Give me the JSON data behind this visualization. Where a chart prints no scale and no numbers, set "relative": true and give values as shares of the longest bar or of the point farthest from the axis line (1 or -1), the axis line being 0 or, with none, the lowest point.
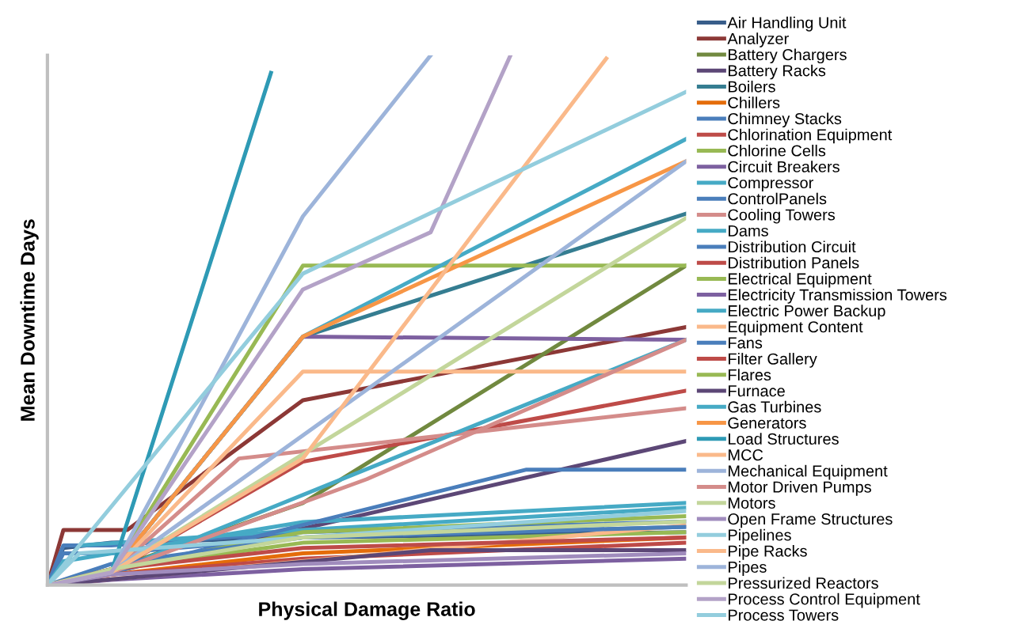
{
  "chart_data": {
    "type": "line",
    "relative": true,
    "xlabel": "Physical Damage Ratio",
    "ylabel": "Mean Downtime Days",
    "legend": "right",
    "line_style": "solid",
    "categories": [
      null,
      null,
      null,
      null,
      null,
      null,
      null,
      null,
      null,
      null,
      null,
      null,
      null,
      null,
      null,
      null,
      null,
      null,
      null,
      null,
      null,
      null,
      null,
      null,
      null,
      null,
      null,
      null,
      null,
      null,
      null,
      null,
      null,
      null,
      null,
      null,
      null,
      null,
      null,
      null,
      null
    ],
    "series": [
      {
        "name": "Air Handling Unit",
        "color": "#385d8a",
        "values": [
          0,
          0.07,
          null,
          null,
          0.08,
          null,
          null,
          null,
          null,
          null,
          null,
          null,
          null,
          null,
          null,
          null,
          0.09,
          null,
          null,
          null,
          null,
          null,
          null,
          null,
          null,
          null,
          null,
          null,
          null,
          null,
          null,
          null,
          null,
          null,
          null,
          null,
          null,
          null,
          null,
          null,
          0.1
        ]
      },
      {
        "name": "Analyzer",
        "color": "#8c3836",
        "values": [
          0,
          0.104,
          null,
          null,
          null,
          0.104,
          null,
          null,
          null,
          null,
          null,
          null,
          null,
          null,
          null,
          null,
          0.349,
          null,
          null,
          null,
          null,
          null,
          null,
          null,
          null,
          null,
          null,
          null,
          null,
          null,
          null,
          null,
          null,
          null,
          null,
          null,
          null,
          null,
          null,
          null,
          0.487
        ]
      },
      {
        "name": "Battery Chargers",
        "color": "#71893f",
        "values": [
          0,
          null,
          null,
          null,
          0.03,
          null,
          null,
          null,
          null,
          null,
          null,
          null,
          null,
          null,
          null,
          null,
          0.155,
          null,
          null,
          null,
          null,
          null,
          null,
          null,
          null,
          null,
          null,
          null,
          null,
          null,
          null,
          null,
          null,
          null,
          null,
          null,
          null,
          null,
          null,
          null,
          0.603
        ]
      },
      {
        "name": "Battery Racks",
        "color": "#5c4776",
        "values": [
          0,
          null,
          null,
          null,
          0.024,
          null,
          null,
          null,
          null,
          null,
          null,
          null,
          null,
          null,
          null,
          null,
          null,
          null,
          null,
          null,
          null,
          null,
          null,
          null,
          null,
          null,
          null,
          null,
          null,
          null,
          null,
          null,
          null,
          null,
          null,
          null,
          null,
          null,
          null,
          null,
          0.272
        ]
      },
      {
        "name": "Boilers",
        "color": "#357d91",
        "values": [
          0,
          null,
          null,
          null,
          0.024,
          null,
          null,
          null,
          null,
          null,
          null,
          null,
          null,
          null,
          null,
          null,
          0.469,
          null,
          null,
          null,
          null,
          null,
          null,
          null,
          null,
          null,
          null,
          null,
          null,
          null,
          null,
          null,
          null,
          null,
          null,
          null,
          null,
          null,
          null,
          null,
          0.701
        ]
      },
      {
        "name": "Chillers",
        "color": "#e46c0a",
        "values": [
          0,
          null,
          null,
          null,
          0.02,
          null,
          null,
          null,
          null,
          null,
          null,
          null,
          null,
          null,
          null,
          null,
          0.06,
          null,
          null,
          null,
          null,
          null,
          null,
          null,
          null,
          null,
          null,
          null,
          null,
          null,
          null,
          null,
          null,
          null,
          null,
          null,
          null,
          null,
          null,
          null,
          0.09
        ]
      },
      {
        "name": "Chimney Stacks",
        "color": "#4a7ebb",
        "values": [
          0,
          0.075,
          null,
          null,
          0.075,
          null,
          null,
          null,
          null,
          null,
          null,
          null,
          null,
          null,
          null,
          null,
          0.1,
          null,
          null,
          null,
          null,
          null,
          null,
          null,
          null,
          null,
          null,
          null,
          null,
          null,
          null,
          null,
          null,
          null,
          null,
          null,
          null,
          null,
          null,
          null,
          0.12
        ]
      },
      {
        "name": "Chlorination Equipment",
        "color": "#be4b48",
        "values": [
          0,
          null,
          null,
          null,
          0.024,
          null,
          null,
          null,
          null,
          null,
          null,
          null,
          null,
          null,
          null,
          null,
          0.233,
          null,
          null,
          null,
          null,
          null,
          null,
          null,
          null,
          null,
          null,
          null,
          null,
          null,
          null,
          null,
          null,
          null,
          null,
          null,
          null,
          null,
          null,
          null,
          0.367
        ]
      },
      {
        "name": "Chlorine Cells",
        "color": "#98b954",
        "values": [
          0,
          null,
          null,
          null,
          0.03,
          null,
          null,
          null,
          null,
          null,
          null,
          null,
          null,
          null,
          null,
          null,
          0.08,
          null,
          null,
          null,
          null,
          null,
          null,
          null,
          null,
          null,
          null,
          null,
          null,
          null,
          null,
          null,
          null,
          null,
          null,
          null,
          null,
          null,
          null,
          null,
          0.1
        ]
      },
      {
        "name": "Circuit Breakers",
        "color": "#7d60a0",
        "values": [
          0,
          null,
          null,
          null,
          0.024,
          null,
          null,
          null,
          null,
          null,
          null,
          null,
          null,
          null,
          null,
          null,
          0.469,
          null,
          null,
          null,
          null,
          null,
          null,
          null,
          null,
          null,
          null,
          null,
          null,
          null,
          null,
          null,
          null,
          null,
          null,
          null,
          null,
          null,
          null,
          null,
          0.463
        ]
      },
      {
        "name": "Compressor",
        "color": "#46aac5",
        "values": [
          0,
          null,
          0.075,
          null,
          null,
          null,
          null,
          null,
          null,
          null,
          null,
          null,
          null,
          null,
          null,
          null,
          0.104,
          null,
          null,
          null,
          null,
          null,
          null,
          null,
          null,
          null,
          null,
          null,
          null,
          null,
          null,
          null,
          null,
          null,
          null,
          null,
          null,
          null,
          null,
          null,
          0.146
        ]
      },
      {
        "name": "ControlPanels",
        "color": "#4a7ebb",
        "values": [
          0,
          0.06,
          null,
          null,
          0.06,
          null,
          null,
          null,
          null,
          null,
          null,
          null,
          null,
          null,
          null,
          null,
          0.09,
          null,
          null,
          null,
          null,
          null,
          null,
          null,
          null,
          null,
          null,
          null,
          null,
          null,
          null,
          null,
          null,
          null,
          null,
          null,
          null,
          null,
          null,
          null,
          0.11
        ]
      },
      {
        "name": "Cooling Towers",
        "color": "#d48c8a",
        "values": [
          0,
          null,
          null,
          null,
          0.024,
          null,
          null,
          null,
          null,
          null,
          null,
          null,
          0.239,
          null,
          null,
          null,
          null,
          null,
          null,
          null,
          null,
          null,
          null,
          null,
          null,
          null,
          null,
          null,
          null,
          null,
          null,
          null,
          null,
          null,
          null,
          null,
          null,
          null,
          null,
          null,
          0.334
        ]
      },
      {
        "name": "Dams",
        "color": "#46aac5",
        "values": [
          0,
          0.045,
          null,
          null,
          null,
          null,
          null,
          null,
          null,
          null,
          null,
          null,
          null,
          null,
          null,
          null,
          0.119,
          null,
          null,
          null,
          null,
          null,
          null,
          null,
          null,
          null,
          null,
          null,
          null,
          null,
          null,
          null,
          null,
          null,
          null,
          null,
          null,
          null,
          null,
          null,
          0.155
        ]
      },
      {
        "name": "Distribution Circuit",
        "color": "#4a7ebb",
        "values": [
          0,
          null,
          null,
          null,
          0.024,
          null,
          null,
          null,
          null,
          null,
          null,
          null,
          null,
          null,
          null,
          null,
          null,
          null,
          null,
          null,
          null,
          null,
          null,
          null,
          null,
          null,
          null,
          null,
          null,
          null,
          0.218,
          null,
          null,
          null,
          null,
          null,
          null,
          null,
          null,
          null,
          0.218
        ]
      },
      {
        "name": "Distribution Panels",
        "color": "#be4b48",
        "values": [
          0,
          null,
          null,
          null,
          0.02,
          null,
          null,
          null,
          null,
          null,
          null,
          null,
          null,
          null,
          null,
          null,
          0.05,
          null,
          null,
          null,
          null,
          null,
          null,
          null,
          null,
          null,
          null,
          null,
          null,
          null,
          null,
          null,
          null,
          null,
          null,
          null,
          null,
          null,
          null,
          null,
          0.08
        ]
      },
      {
        "name": "Electrical Equipment",
        "color": "#98b954",
        "values": [
          0,
          null,
          null,
          null,
          0.03,
          null,
          null,
          null,
          null,
          null,
          null,
          null,
          null,
          null,
          null,
          null,
          0.1,
          null,
          null,
          null,
          null,
          null,
          null,
          null,
          null,
          null,
          null,
          null,
          null,
          null,
          null,
          null,
          null,
          null,
          null,
          null,
          null,
          null,
          null,
          null,
          0.13
        ]
      },
      {
        "name": "Electricity Transmission Towers",
        "color": "#7d60a0",
        "values": [
          0,
          null,
          null,
          null,
          0.01,
          null,
          null,
          null,
          null,
          null,
          null,
          null,
          null,
          null,
          null,
          null,
          0.03,
          null,
          null,
          null,
          null,
          null,
          null,
          null,
          null,
          null,
          null,
          null,
          null,
          null,
          null,
          null,
          null,
          null,
          null,
          null,
          null,
          null,
          null,
          null,
          0.05
        ]
      },
      {
        "name": "Electric Power Backup",
        "color": "#46aac5",
        "values": [
          0,
          null,
          null,
          null,
          0.024,
          null,
          null,
          null,
          null,
          null,
          null,
          null,
          null,
          null,
          null,
          null,
          null,
          null,
          null,
          null,
          null,
          null,
          null,
          null,
          null,
          null,
          null,
          null,
          null,
          null,
          null,
          null,
          null,
          null,
          null,
          null,
          null,
          null,
          null,
          null,
          0.463
        ]
      },
      {
        "name": "Equipment Content",
        "color": "#fab98a",
        "values": [
          0,
          null,
          null,
          null,
          null,
          null,
          null,
          null,
          null,
          null,
          null,
          null,
          null,
          null,
          null,
          null,
          null,
          null,
          null,
          null,
          null,
          null,
          null,
          null,
          null,
          null,
          null,
          null,
          null,
          null,
          null,
          null,
          null,
          null,
          null,
          null,
          null,
          null,
          null,
          null,
          0.113
        ]
      },
      {
        "name": "Fans",
        "color": "#4a7ebb",
        "values": [
          0,
          null,
          null,
          null,
          0.04,
          null,
          null,
          null,
          null,
          null,
          null,
          null,
          null,
          null,
          null,
          null,
          0.09,
          null,
          null,
          null,
          null,
          null,
          null,
          null,
          null,
          null,
          null,
          null,
          null,
          null,
          null,
          null,
          null,
          null,
          null,
          null,
          null,
          null,
          null,
          null,
          0.11
        ]
      },
      {
        "name": "Filter Gallery",
        "color": "#be4b48",
        "values": [
          0,
          null,
          null,
          null,
          0.03,
          null,
          null,
          null,
          null,
          null,
          null,
          null,
          null,
          null,
          null,
          null,
          0.07,
          null,
          null,
          null,
          null,
          null,
          null,
          null,
          null,
          null,
          null,
          null,
          null,
          null,
          null,
          null,
          null,
          null,
          null,
          null,
          null,
          null,
          null,
          null,
          0.09
        ]
      },
      {
        "name": "Flares",
        "color": "#98b954",
        "values": [
          0,
          null,
          null,
          null,
          0.024,
          null,
          null,
          null,
          null,
          null,
          null,
          null,
          null,
          null,
          null,
          null,
          0.603,
          null,
          null,
          null,
          null,
          null,
          null,
          null,
          null,
          null,
          null,
          null,
          null,
          null,
          null,
          null,
          null,
          null,
          null,
          null,
          null,
          null,
          null,
          null,
          0.603
        ]
      },
      {
        "name": "Furnace",
        "color": "#5c4776",
        "values": [
          0,
          null,
          null,
          null,
          null,
          null,
          null,
          null,
          null,
          null,
          null,
          null,
          null,
          null,
          null,
          null,
          null,
          null,
          null,
          null,
          null,
          null,
          null,
          null,
          0.066,
          null,
          null,
          null,
          null,
          null,
          null,
          null,
          null,
          null,
          null,
          null,
          null,
          null,
          null,
          null,
          0.066
        ]
      },
      {
        "name": "Gas Turbines",
        "color": "#46aac5",
        "values": [
          0,
          null,
          null,
          null,
          0.024,
          null,
          null,
          null,
          null,
          null,
          null,
          null,
          null,
          null,
          null,
          null,
          0.469,
          null,
          null,
          null,
          null,
          null,
          null,
          null,
          null,
          null,
          null,
          null,
          null,
          null,
          null,
          null,
          null,
          null,
          null,
          null,
          null,
          null,
          null,
          null,
          0.842
        ]
      },
      {
        "name": "Generators",
        "color": "#f79646",
        "values": [
          0,
          null,
          null,
          null,
          0.024,
          null,
          null,
          null,
          null,
          null,
          null,
          null,
          null,
          null,
          null,
          null,
          0.469,
          null,
          null,
          null,
          null,
          null,
          null,
          null,
          null,
          null,
          null,
          null,
          null,
          null,
          null,
          null,
          null,
          null,
          null,
          null,
          null,
          null,
          null,
          null,
          0.8
        ]
      },
      {
        "name": "Load Structures",
        "color": "#2e9ab5",
        "values": [
          0,
          null,
          null,
          null,
          0.024,
          null,
          null,
          null,
          null,
          null,
          null,
          null,
          null,
          null,
          0.967,
          null,
          null,
          null,
          null,
          null,
          null,
          null,
          null,
          null,
          null,
          null,
          null,
          null,
          null,
          null,
          null,
          null,
          null,
          null,
          null,
          null,
          null,
          null,
          null,
          null,
          null
        ]
      },
      {
        "name": "MCC",
        "color": "#fab98a",
        "values": [
          0,
          null,
          null,
          null,
          0.024,
          null,
          null,
          null,
          null,
          null,
          null,
          null,
          null,
          null,
          null,
          null,
          0.403,
          null,
          null,
          null,
          null,
          null,
          null,
          null,
          null,
          null,
          null,
          null,
          null,
          null,
          null,
          null,
          null,
          null,
          null,
          null,
          null,
          null,
          null,
          null,
          0.403
        ]
      },
      {
        "name": "Mechanical Equipment",
        "color": "#9db4da",
        "values": [
          0,
          null,
          null,
          null,
          0.024,
          null,
          null,
          null,
          null,
          null,
          null,
          null,
          null,
          null,
          null,
          null,
          null,
          null,
          null,
          null,
          null,
          null,
          null,
          null,
          null,
          null,
          null,
          null,
          null,
          null,
          null,
          null,
          null,
          null,
          null,
          null,
          null,
          null,
          null,
          null,
          0.8
        ]
      },
      {
        "name": "Motor Driven Pumps",
        "color": "#d48c8a",
        "values": [
          0,
          null,
          null,
          null,
          0.024,
          null,
          null,
          null,
          null,
          null,
          null,
          null,
          null,
          null,
          null,
          null,
          null,
          null,
          null,
          null,
          0.2,
          null,
          null,
          null,
          null,
          null,
          null,
          null,
          null,
          null,
          null,
          null,
          null,
          null,
          null,
          null,
          null,
          null,
          null,
          null,
          0.463
        ]
      },
      {
        "name": "Motors",
        "color": "#c3d69b",
        "values": [
          0,
          null,
          null,
          null,
          0.024,
          null,
          null,
          null,
          null,
          null,
          null,
          null,
          null,
          null,
          null,
          null,
          null,
          null,
          null,
          null,
          null,
          null,
          null,
          null,
          null,
          null,
          null,
          null,
          null,
          null,
          null,
          null,
          null,
          null,
          null,
          null,
          null,
          null,
          null,
          null,
          0.693
        ]
      },
      {
        "name": "Open Frame Structures",
        "color": "#a08cbd",
        "values": [
          0,
          null,
          null,
          null,
          0.02,
          null,
          null,
          null,
          null,
          null,
          null,
          null,
          null,
          null,
          null,
          null,
          0.04,
          null,
          null,
          null,
          null,
          null,
          null,
          null,
          null,
          null,
          null,
          null,
          null,
          null,
          null,
          null,
          null,
          null,
          null,
          null,
          null,
          null,
          null,
          null,
          0.06
        ]
      },
      {
        "name": "Pipelines",
        "color": "#93cddd",
        "values": [
          0,
          null,
          0.06,
          null,
          null,
          null,
          null,
          null,
          null,
          null,
          null,
          null,
          null,
          null,
          null,
          null,
          0.09,
          null,
          null,
          null,
          null,
          null,
          null,
          null,
          null,
          null,
          null,
          null,
          null,
          null,
          null,
          null,
          null,
          null,
          null,
          null,
          null,
          null,
          null,
          null,
          0.14
        ]
      },
      {
        "name": "Pipe Racks",
        "color": "#fab98a",
        "values": [
          0,
          null,
          null,
          null,
          0.024,
          null,
          null,
          null,
          null,
          null,
          null,
          null,
          null,
          null,
          null,
          null,
          0.239,
          null,
          null,
          null,
          null,
          null,
          null,
          null,
          null,
          null,
          null,
          null,
          null,
          null,
          null,
          null,
          null,
          null,
          null,
          0.994,
          null,
          null,
          null,
          null,
          null
        ]
      },
      {
        "name": "Pipes",
        "color": "#9db4da",
        "values": [
          0,
          null,
          null,
          null,
          0.024,
          null,
          null,
          null,
          null,
          null,
          null,
          null,
          null,
          null,
          null,
          null,
          0.696,
          null,
          null,
          null,
          null,
          null,
          null,
          null,
          1,
          null,
          null,
          null,
          null,
          null,
          null,
          null,
          null,
          null,
          null,
          null,
          null,
          null,
          null,
          null,
          null
        ]
      },
      {
        "name": "Pressurized Reactors",
        "color": "#c3d69b",
        "values": [
          0,
          null,
          null,
          null,
          0.03,
          null,
          null,
          null,
          null,
          null,
          null,
          null,
          null,
          null,
          null,
          null,
          0.09,
          null,
          null,
          null,
          null,
          null,
          null,
          null,
          null,
          null,
          null,
          null,
          null,
          null,
          null,
          null,
          null,
          null,
          null,
          null,
          null,
          null,
          null,
          null,
          0.12
        ]
      },
      {
        "name": "Process Control Equipment",
        "color": "#b3a2c7",
        "values": [
          0,
          null,
          null,
          null,
          0.024,
          null,
          null,
          null,
          null,
          null,
          null,
          null,
          null,
          null,
          null,
          null,
          0.558,
          null,
          null,
          null,
          null,
          null,
          null,
          null,
          0.666,
          null,
          null,
          null,
          null,
          1,
          null,
          null,
          null,
          null,
          null,
          null,
          null,
          null,
          null,
          null,
          null
        ]
      },
      {
        "name": "Process Towers",
        "color": "#93cddd",
        "values": [
          0,
          null,
          0.075,
          null,
          null,
          null,
          null,
          null,
          null,
          null,
          null,
          null,
          null,
          null,
          null,
          null,
          0.588,
          null,
          null,
          null,
          null,
          null,
          null,
          null,
          null,
          null,
          null,
          null,
          null,
          null,
          null,
          null,
          null,
          null,
          null,
          null,
          null,
          null,
          null,
          null,
          0.931
        ]
      }
    ]
  }
}
